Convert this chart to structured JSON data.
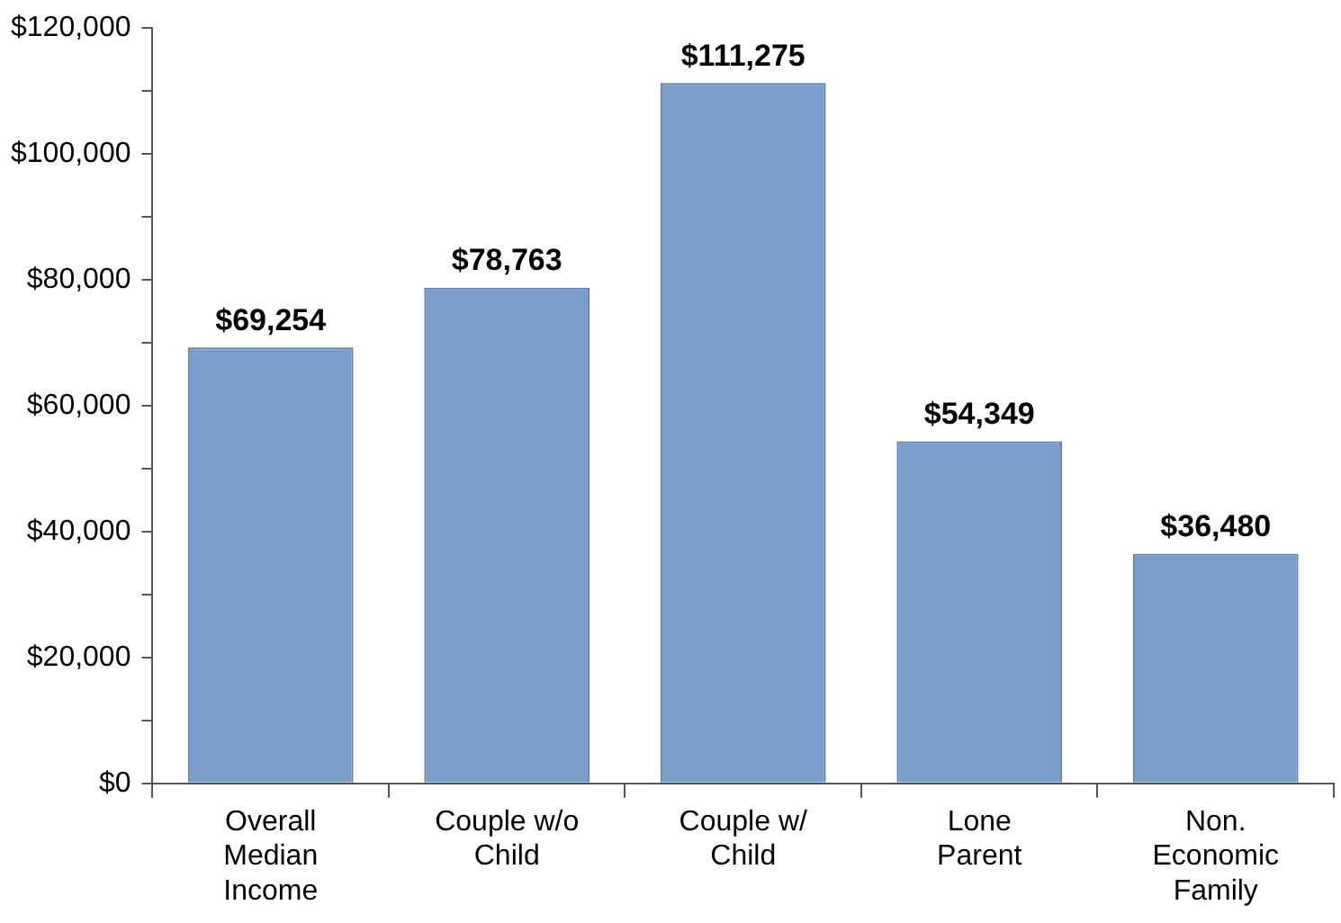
{
  "chart_data": {
    "type": "bar",
    "categories": [
      "Overall Median Income",
      "Couple w/o Child",
      "Couple w/ Child",
      "Lone Parent",
      "Non. Economic Family"
    ],
    "values": [
      69254,
      78763,
      111275,
      54349,
      36480
    ],
    "color": "#7b9dcb",
    "value_labels": [
      "$69,254",
      "$78,763",
      "$111,275",
      "$54,349",
      "$36,480"
    ],
    "ylim": [
      0,
      120000
    ],
    "yticks": [
      {
        "value": 0,
        "label": "$0"
      },
      {
        "value": 10000,
        "label": null
      },
      {
        "value": 20000,
        "label": "$20,000"
      },
      {
        "value": 30000,
        "label": null
      },
      {
        "value": 40000,
        "label": "$40,000"
      },
      {
        "value": 50000,
        "label": null
      },
      {
        "value": 60000,
        "label": "$60,000"
      },
      {
        "value": 70000,
        "label": null
      },
      {
        "value": 80000,
        "label": "$80,000"
      },
      {
        "value": 90000,
        "label": null
      },
      {
        "value": 100000,
        "label": "$100,000"
      },
      {
        "value": 110000,
        "label": null
      },
      {
        "value": 120000,
        "label": "$120,000"
      }
    ]
  }
}
